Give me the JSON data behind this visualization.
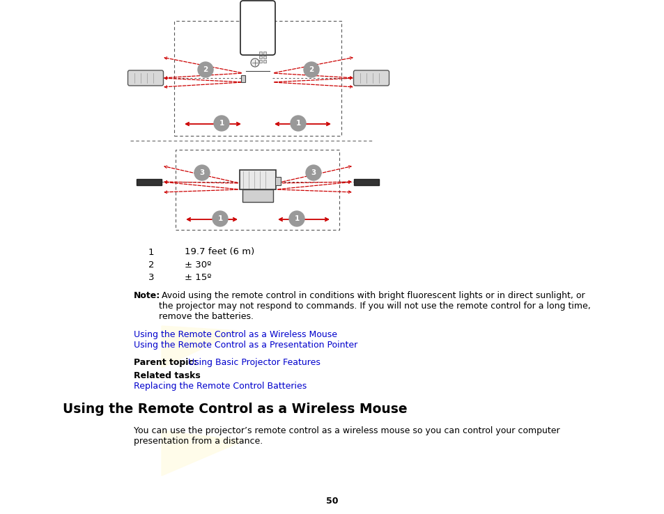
{
  "bg_color": "#ffffff",
  "page_number": "50",
  "legend_items": [
    {
      "num": "1",
      "text": "19.7 feet (6 m)"
    },
    {
      "num": "2",
      "text": "± 30º"
    },
    {
      "num": "3",
      "text": "± 15º"
    }
  ],
  "note_bold": "Note:",
  "note_text": " Avoid using the remote control in conditions with bright fluorescent lights or in direct sunlight, or\nthe projector may not respond to commands. If you will not use the remote control for a long time,\nremove the batteries.",
  "links": [
    "Using the Remote Control as a Wireless Mouse",
    "Using the Remote Control as a Presentation Pointer"
  ],
  "parent_topic_label": "Parent topic:",
  "parent_topic_link": "Using Basic Projector Features",
  "related_tasks_label": "Related tasks",
  "related_tasks_link": "Replacing the Remote Control Batteries",
  "section_title": "Using the Remote Control as a Wireless Mouse",
  "section_body": "You can use the projector’s remote control as a wireless mouse so you can control your computer\npresentation from a distance.",
  "link_color": "#0000cc",
  "text_color": "#000000",
  "red_color": "#cc0000"
}
